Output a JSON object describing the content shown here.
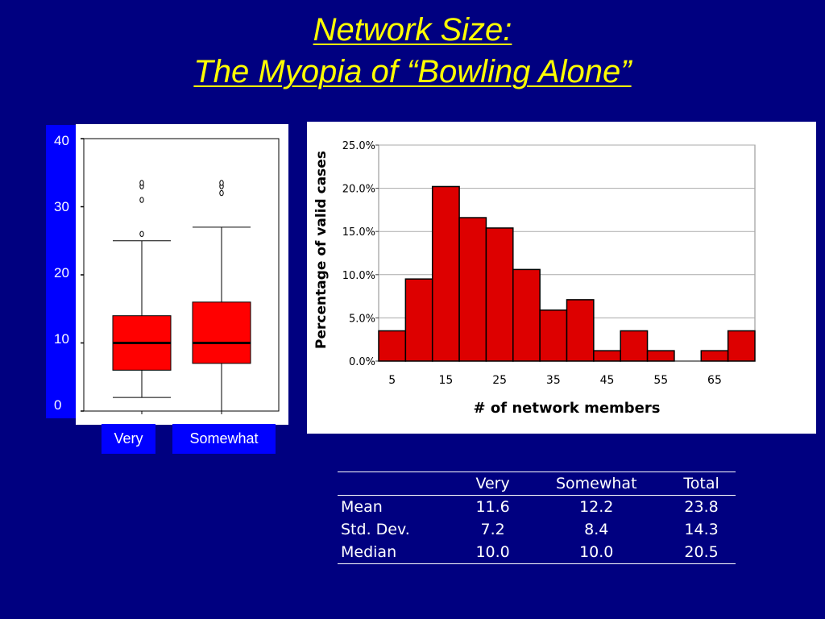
{
  "title": {
    "line1": "Network Size:",
    "line2": "The Myopia of “Bowling Alone”"
  },
  "colors": {
    "background": "#000080",
    "title": "#ffff00",
    "bar_fill": "#dd0000",
    "box_fill": "#ff0000"
  },
  "chart_data": [
    {
      "type": "box",
      "y_ticks": [
        "0",
        "10",
        "20",
        "30",
        "40"
      ],
      "ylim": [
        0,
        40
      ],
      "categories": [
        "Very",
        "Somewhat"
      ],
      "boxes": [
        {
          "name": "Very",
          "min": 2,
          "q1": 6,
          "median": 10,
          "q3": 14,
          "max": 25,
          "outliers": [
            26,
            31,
            33,
            33.5
          ]
        },
        {
          "name": "Somewhat",
          "min": 0,
          "q1": 7,
          "median": 10,
          "q3": 16,
          "max": 27,
          "outliers": [
            32,
            33,
            33.5
          ]
        }
      ]
    },
    {
      "type": "bar",
      "title": "",
      "xlabel": "# of network members",
      "ylabel": "Percentage of valid cases",
      "ylim": [
        0,
        25
      ],
      "y_ticks": [
        "0.0%",
        "5.0%",
        "10.0%",
        "15.0%",
        "20.0%",
        "25.0%"
      ],
      "x_ticks": [
        "5",
        "15",
        "25",
        "35",
        "45",
        "55",
        "65"
      ],
      "categories": [
        5,
        10,
        15,
        20,
        25,
        30,
        35,
        40,
        45,
        50,
        55,
        60,
        65,
        70
      ],
      "values": [
        3.5,
        9.5,
        20.2,
        16.6,
        15.4,
        10.6,
        5.9,
        7.1,
        1.2,
        3.5,
        1.2,
        0.0,
        1.2,
        3.5
      ],
      "grid": true
    }
  ],
  "stats_table": {
    "headers": [
      "",
      "Very",
      "Somewhat",
      "Total"
    ],
    "rows": [
      [
        "Mean",
        "11.6",
        "12.2",
        "23.8"
      ],
      [
        "Std. Dev.",
        "7.2",
        "8.4",
        "14.3"
      ],
      [
        "Median",
        "10.0",
        "10.0",
        "20.5"
      ]
    ]
  }
}
